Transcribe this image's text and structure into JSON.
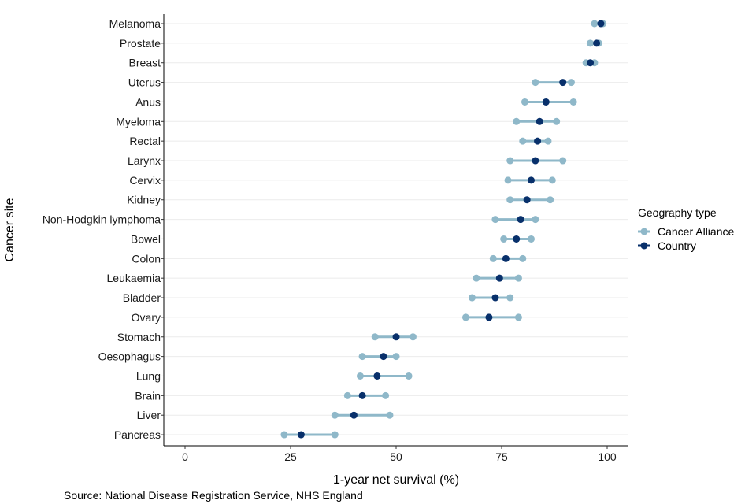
{
  "chart_data": {
    "type": "dumbbell",
    "xlabel": "1-year net survival (%)",
    "ylabel": "Cancer site",
    "xlim": [
      -5,
      105
    ],
    "xticks": [
      0,
      25,
      50,
      75,
      100
    ],
    "grid": "horizontal",
    "legend": {
      "title": "Geography type",
      "placement": "right",
      "entries": [
        "Cancer Alliance",
        "Country"
      ]
    },
    "colors": {
      "range": "#8fb8c9",
      "alliance": "#8fb8c9",
      "country": "#08306b",
      "grid": "#ebebeb",
      "axis": "#000000"
    },
    "categories": [
      "Melanoma",
      "Prostate",
      "Breast",
      "Uterus",
      "Anus",
      "Myeloma",
      "Rectal",
      "Larynx",
      "Cervix",
      "Kidney",
      "Non-Hodgkin lymphoma",
      "Bowel",
      "Colon",
      "Leukaemia",
      "Bladder",
      "Ovary",
      "Stomach",
      "Oesophagus",
      "Lung",
      "Brain",
      "Liver",
      "Pancreas"
    ],
    "series": [
      {
        "name": "Cancer Alliance",
        "kind": "range",
        "low": [
          97.0,
          96.0,
          95.0,
          83.0,
          80.5,
          78.5,
          80.0,
          77.0,
          76.5,
          77.0,
          73.5,
          75.5,
          73.0,
          69.0,
          68.0,
          66.5,
          45.0,
          42.0,
          41.5,
          38.5,
          35.5,
          23.5
        ],
        "high": [
          99.0,
          98.0,
          97.0,
          91.5,
          92.0,
          88.0,
          86.0,
          89.5,
          87.0,
          86.5,
          83.0,
          82.0,
          80.0,
          79.0,
          77.0,
          79.0,
          54.0,
          50.0,
          53.0,
          47.5,
          48.5,
          35.5
        ]
      },
      {
        "name": "Country",
        "kind": "point",
        "values": [
          98.5,
          97.5,
          96.0,
          89.5,
          85.5,
          84.0,
          83.5,
          83.0,
          82.0,
          81.0,
          79.5,
          78.5,
          76.0,
          74.5,
          73.5,
          72.0,
          50.0,
          47.0,
          45.5,
          42.0,
          40.0,
          27.5
        ]
      }
    ]
  },
  "source": "Source: National Disease Registration Service, NHS England"
}
